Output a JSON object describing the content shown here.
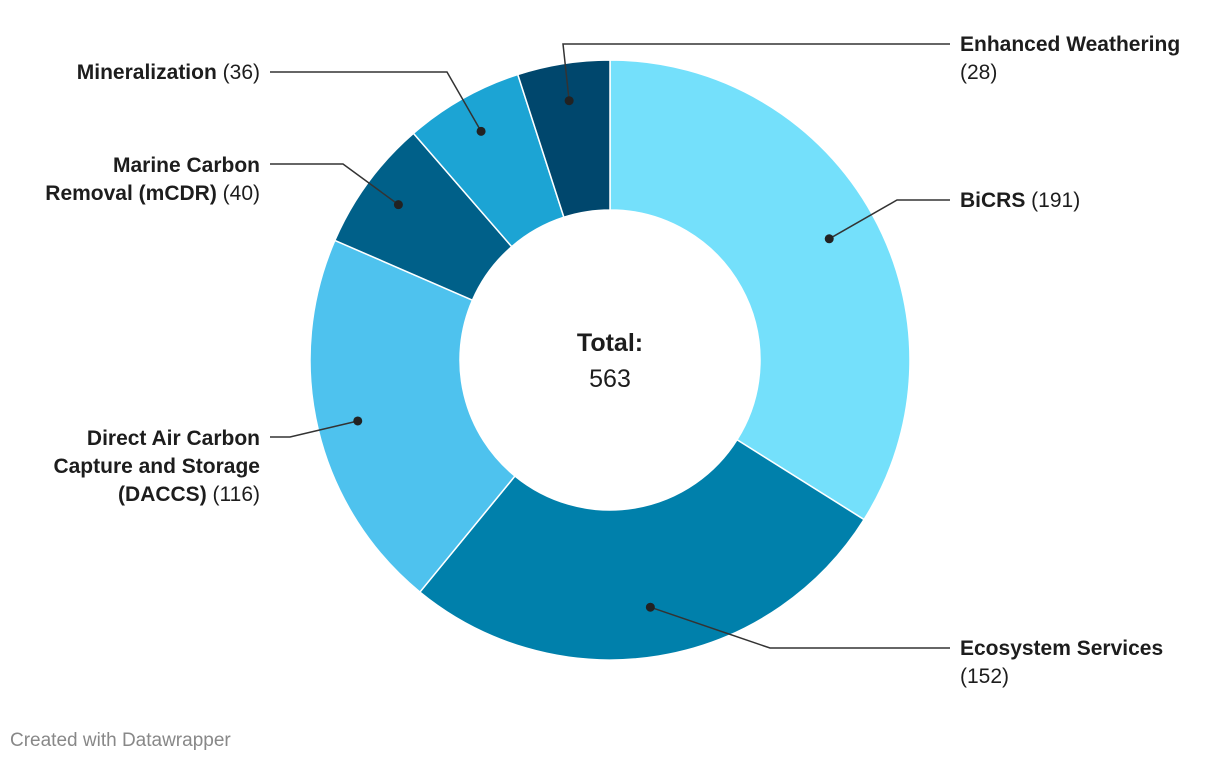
{
  "chart_data": {
    "type": "pie",
    "variant": "donut",
    "center_label": {
      "title": "Total:",
      "value": "563"
    },
    "slices": [
      {
        "name": "BiCRS",
        "value": 191,
        "color": "#74e0fb",
        "value_text": "(191)"
      },
      {
        "name": "Ecosystem Services",
        "value": 152,
        "color": "#0080ab",
        "value_text": "(152)"
      },
      {
        "name": "Direct Air Carbon Capture and Storage (DACCS)",
        "value": 116,
        "color": "#4ec2ee",
        "value_text": "(116)"
      },
      {
        "name": "Marine Carbon Removal (mCDR)",
        "value": 40,
        "color": "#006089",
        "value_text": "(40)"
      },
      {
        "name": "Mineralization",
        "value": 36,
        "color": "#1ca4d4",
        "value_text": "(36)"
      },
      {
        "name": "Enhanced Weathering",
        "value": 28,
        "color": "#00476d",
        "value_text": "(28)"
      }
    ]
  },
  "footer": {
    "credit": "Created with Datawrapper"
  }
}
